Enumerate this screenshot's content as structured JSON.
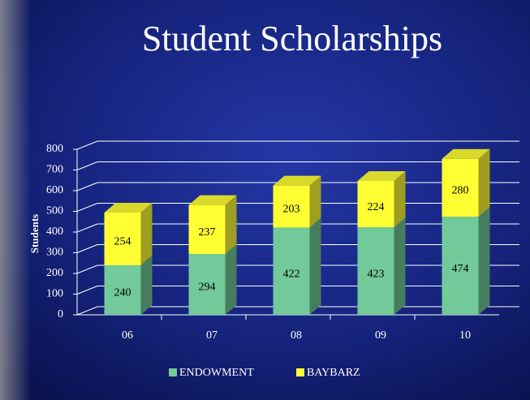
{
  "chart_data": {
    "type": "bar",
    "stacked": true,
    "title": "Student Scholarships",
    "y_label": "Students",
    "categories": [
      "06",
      "07",
      "08",
      "09",
      "10"
    ],
    "series": [
      {
        "name": "ENDOWMENT",
        "color": "#72c99a",
        "values": [
          240,
          294,
          422,
          423,
          474
        ]
      },
      {
        "name": "BAYBARZ",
        "color": "#ffff33",
        "values": [
          254,
          237,
          203,
          224,
          280
        ]
      }
    ],
    "ylim": [
      0,
      800
    ],
    "yticks": [
      0,
      100,
      200,
      300,
      400,
      500,
      600,
      700,
      800
    ],
    "grid": true,
    "legend": "bottom"
  }
}
